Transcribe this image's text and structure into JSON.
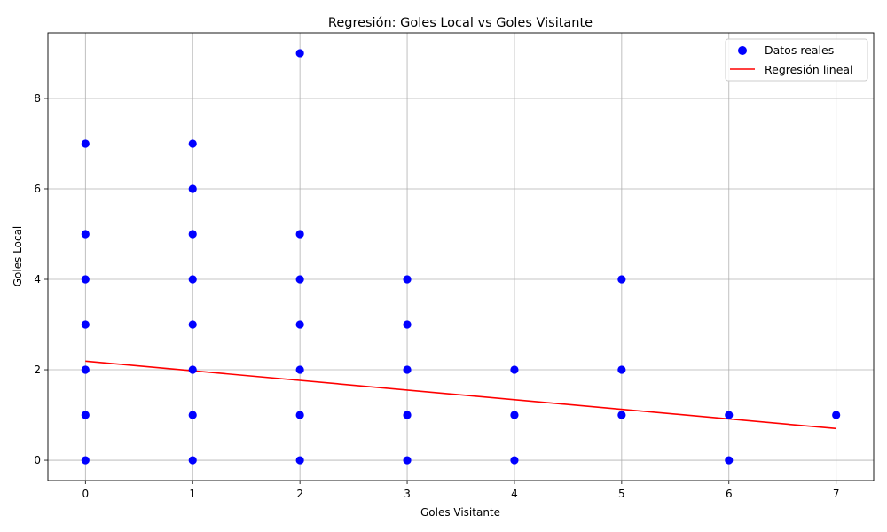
{
  "chart_data": {
    "type": "scatter",
    "title": "Regresión: Goles Local vs Goles Visitante",
    "xlabel": "Goles Visitante",
    "ylabel": "Goles Local",
    "xlim": [
      -0.35,
      7.35
    ],
    "ylim": [
      -0.45,
      9.45
    ],
    "xticks": [
      0,
      1,
      2,
      3,
      4,
      5,
      6,
      7
    ],
    "yticks": [
      0,
      2,
      4,
      6,
      8
    ],
    "grid": true,
    "legend_position": "top-right",
    "series": [
      {
        "name": "Datos reales",
        "kind": "scatter",
        "color": "#0000ff",
        "points": [
          [
            0,
            0
          ],
          [
            0,
            1
          ],
          [
            0,
            2
          ],
          [
            0,
            3
          ],
          [
            0,
            4
          ],
          [
            0,
            5
          ],
          [
            0,
            7
          ],
          [
            1,
            0
          ],
          [
            1,
            1
          ],
          [
            1,
            2
          ],
          [
            1,
            3
          ],
          [
            1,
            4
          ],
          [
            1,
            5
          ],
          [
            1,
            6
          ],
          [
            1,
            7
          ],
          [
            2,
            0
          ],
          [
            2,
            1
          ],
          [
            2,
            2
          ],
          [
            2,
            3
          ],
          [
            2,
            4
          ],
          [
            2,
            5
          ],
          [
            2,
            9
          ],
          [
            3,
            0
          ],
          [
            3,
            1
          ],
          [
            3,
            2
          ],
          [
            3,
            3
          ],
          [
            3,
            4
          ],
          [
            4,
            0
          ],
          [
            4,
            1
          ],
          [
            4,
            2
          ],
          [
            5,
            1
          ],
          [
            5,
            2
          ],
          [
            5,
            4
          ],
          [
            6,
            0
          ],
          [
            6,
            1
          ],
          [
            7,
            1
          ]
        ]
      },
      {
        "name": "Regresión lineal",
        "kind": "line",
        "color": "#ff0000",
        "x": [
          0,
          7
        ],
        "y": [
          2.19,
          0.7
        ]
      }
    ]
  }
}
